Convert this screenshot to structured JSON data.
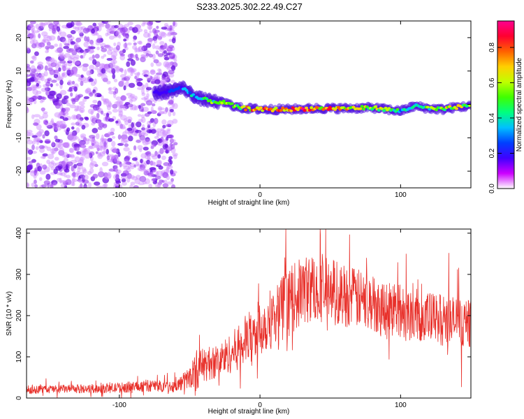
{
  "title": "S233.2025.302.22.49.C27",
  "chart_data": [
    {
      "type": "heatmap",
      "name": "spectrogram",
      "xlabel": "Height of straight line (km)",
      "ylabel": "Frequency (Hz)",
      "xlim": [
        -166,
        150
      ],
      "ylim": [
        -25,
        25
      ],
      "xticks": [
        -100,
        0,
        100
      ],
      "yticks": [
        -20,
        -10,
        0,
        10,
        20
      ],
      "xtick_labels": [
        "-100",
        "0",
        "100"
      ],
      "ytick_labels": [
        "-20",
        "-10",
        "0",
        "10",
        "20"
      ],
      "colorbar": {
        "label": "Normalized spectral amplitude",
        "range": [
          0.0,
          0.95
        ],
        "ticks": [
          0.0,
          0.2,
          0.4,
          0.6,
          0.8
        ],
        "tick_labels": [
          "0.0",
          "0.2",
          "0.4",
          "0.6",
          "0.8"
        ],
        "colors": [
          "#ffffff",
          "#cc00ff",
          "#4000ff",
          "#0040ff",
          "#00c0ff",
          "#00ff80",
          "#40ff00",
          "#c0ff00",
          "#ffd000",
          "#ff6000",
          "#ff0030",
          "#ff0090"
        ]
      },
      "ridge": {
        "x": [
          -70,
          -55,
          -45,
          -35,
          -25,
          -15,
          0,
          20,
          40,
          60,
          80,
          100,
          110,
          120,
          130,
          140,
          150
        ],
        "frequency": [
          3.5,
          5,
          2,
          1,
          0.5,
          -1,
          -1.5,
          -1.5,
          -1.2,
          -1.2,
          -1.0,
          -2.0,
          -0.5,
          -1.2,
          -1.5,
          -0.8,
          -0.5
        ],
        "peak_amplitude": [
          0.2,
          0.35,
          0.4,
          0.55,
          0.6,
          0.7,
          0.9,
          0.9,
          0.85,
          0.75,
          0.7,
          0.45,
          0.5,
          0.6,
          0.65,
          0.75,
          0.6
        ]
      },
      "noise_region": {
        "x_range": [
          -166,
          -60
        ],
        "frequency_range": [
          -25,
          25
        ]
      }
    },
    {
      "type": "line",
      "name": "snr",
      "xlabel": "Height of straight line (km)",
      "ylabel": "SNR (10 * v/v)",
      "xlim": [
        -166,
        150
      ],
      "ylim": [
        0,
        410
      ],
      "xticks": [
        -100,
        0,
        100
      ],
      "yticks": [
        0,
        100,
        200,
        300,
        400
      ],
      "xtick_labels": [
        "-100",
        "0",
        "100"
      ],
      "ytick_labels": [
        "0",
        "100",
        "200",
        "300",
        "400"
      ],
      "color": "#e8302a",
      "envelope": {
        "x": [
          -166,
          -140,
          -120,
          -100,
          -80,
          -60,
          -50,
          -45,
          -40,
          -30,
          -20,
          -10,
          0,
          10,
          20,
          30,
          40,
          50,
          60,
          80,
          100,
          120,
          140,
          150
        ],
        "mean": [
          20,
          22,
          22,
          25,
          30,
          28,
          50,
          70,
          80,
          90,
          110,
          140,
          170,
          200,
          230,
          260,
          270,
          260,
          250,
          230,
          210,
          195,
          185,
          180
        ],
        "spread": [
          15,
          15,
          15,
          18,
          22,
          20,
          40,
          70,
          60,
          60,
          70,
          90,
          100,
          110,
          120,
          120,
          120,
          120,
          110,
          100,
          100,
          90,
          90,
          80
        ]
      }
    }
  ]
}
